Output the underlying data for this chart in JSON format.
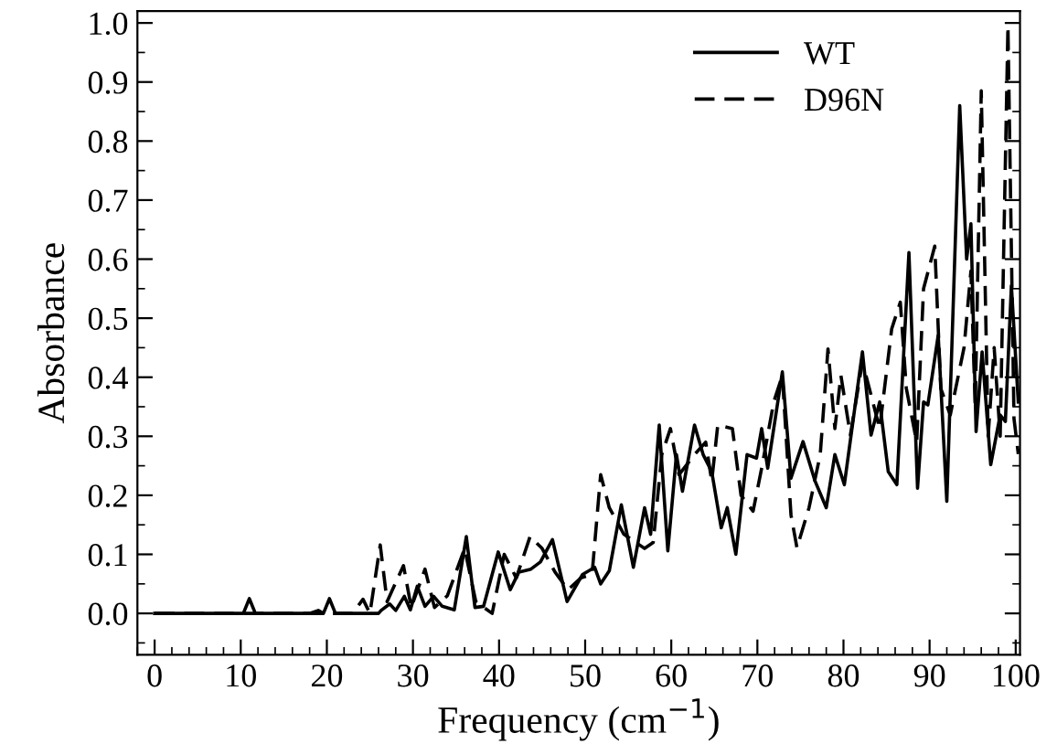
{
  "chart_data": {
    "type": "line",
    "xlabel": "Frequency (cm$^{−1}$)",
    "ylabel": "Absorbance",
    "xlim": [
      -2,
      100.5
    ],
    "ylim": [
      -0.07,
      1.02
    ],
    "xticks": [
      0,
      10,
      20,
      30,
      40,
      50,
      60,
      70,
      80,
      90,
      100
    ],
    "yticks": [
      {
        "value": 0,
        "label": "0.0"
      },
      0.1,
      0.2,
      0.3,
      0.4,
      0.5,
      0.6,
      0.7,
      0.8,
      0.9,
      {
        "value": 1,
        "label": "1.0"
      }
    ],
    "grid": false,
    "legend": "top right",
    "marker": "none",
    "series": [
      {
        "name": "WT",
        "color": "#000000",
        "line_style": "solid",
        "x": [
          0,
          10.3,
          11,
          11.7,
          18,
          19,
          19.6,
          20.3,
          21,
          26,
          26.3,
          27.3,
          28,
          29,
          29.7,
          30.5,
          31.4,
          32.4,
          33.4,
          34.8,
          36.2,
          37.2,
          38.2,
          39.9,
          41.3,
          42.3,
          43.7,
          44.8,
          46.2,
          47.9,
          49.7,
          51.1,
          51.8,
          52.8,
          54.2,
          55.6,
          56.9,
          57.6,
          58.6,
          59.6,
          60.6,
          61.3,
          62.7,
          63.7,
          64.7,
          65.8,
          66.5,
          67.5,
          68.8,
          69.9,
          70.5,
          71.2,
          72.9,
          73.9,
          75.3,
          76.7,
          78.0,
          79.0,
          80.1,
          82.2,
          83.2,
          84.2,
          85.2,
          86.2,
          87.6,
          88.6,
          89.3,
          89.8,
          91.0,
          92.0,
          93.5,
          94.3,
          94.8,
          95.4,
          96.1,
          97.1,
          98.2,
          98.8,
          99.5,
          100.3
        ],
        "values": [
          0,
          0,
          0.025,
          0,
          0,
          0.005,
          0,
          0.025,
          0,
          0,
          0.005,
          0.016,
          0.005,
          0.029,
          0.006,
          0.046,
          0.012,
          0.029,
          0.012,
          0.006,
          0.13,
          0.01,
          0.012,
          0.104,
          0.04,
          0.07,
          0.075,
          0.087,
          0.125,
          0.02,
          0.066,
          0.078,
          0.05,
          0.072,
          0.184,
          0.078,
          0.179,
          0.134,
          0.319,
          0.106,
          0.269,
          0.207,
          0.319,
          0.269,
          0.24,
          0.145,
          0.179,
          0.1,
          0.269,
          0.263,
          0.313,
          0.246,
          0.409,
          0.229,
          0.291,
          0.224,
          0.179,
          0.269,
          0.218,
          0.443,
          0.302,
          0.358,
          0.24,
          0.218,
          0.611,
          0.212,
          0.358,
          0.353,
          0.471,
          0.19,
          0.86,
          0.6,
          0.66,
          0.308,
          0.443,
          0.252,
          0.336,
          0.325,
          0.555,
          0.358
        ]
      },
      {
        "name": "D96N",
        "color": "#000000",
        "line_style": "dashed",
        "x": [
          0,
          23,
          24.2,
          25,
          26.2,
          27,
          28.9,
          29.8,
          31.4,
          32.5,
          34,
          36,
          37.3,
          39.2,
          40.6,
          42,
          43.6,
          45,
          46.5,
          48,
          49.5,
          50.8,
          51.8,
          52.8,
          54.5,
          56.9,
          57.9,
          58.9,
          59.9,
          60.9,
          62.7,
          64.0,
          64.7,
          65.4,
          67.1,
          68.1,
          69.5,
          70.5,
          71.9,
          72.9,
          73.9,
          74.6,
          76.0,
          77.3,
          78.2,
          79.0,
          79.7,
          80.8,
          82.2,
          83.2,
          84.2,
          85.6,
          86.6,
          87.3,
          88.5,
          89.3,
          90.6,
          91.3,
          92.4,
          94.0,
          94.8,
          95.3,
          96.0,
          96.8,
          97.5,
          98.2,
          99.1,
          99.8,
          100.3
        ],
        "values": [
          0,
          0,
          0.024,
          0,
          0.116,
          0.02,
          0.081,
          0.01,
          0.075,
          0.01,
          0.03,
          0.11,
          0.02,
          0.0,
          0.1,
          0.06,
          0.13,
          0.11,
          0.07,
          0.04,
          0.06,
          0.066,
          0.235,
          0.179,
          0.134,
          0.11,
          0.12,
          0.269,
          0.313,
          0.235,
          0.269,
          0.29,
          0.224,
          0.319,
          0.313,
          0.2,
          0.173,
          0.246,
          0.358,
          0.403,
          0.167,
          0.111,
          0.179,
          0.269,
          0.448,
          0.313,
          0.403,
          0.302,
          0.426,
          0.37,
          0.313,
          0.482,
          0.527,
          0.381,
          0.29,
          0.55,
          0.622,
          0.381,
          0.336,
          0.45,
          0.58,
          0.35,
          0.885,
          0.3,
          0.45,
          0.3,
          0.995,
          0.33,
          0.27
        ]
      }
    ]
  }
}
